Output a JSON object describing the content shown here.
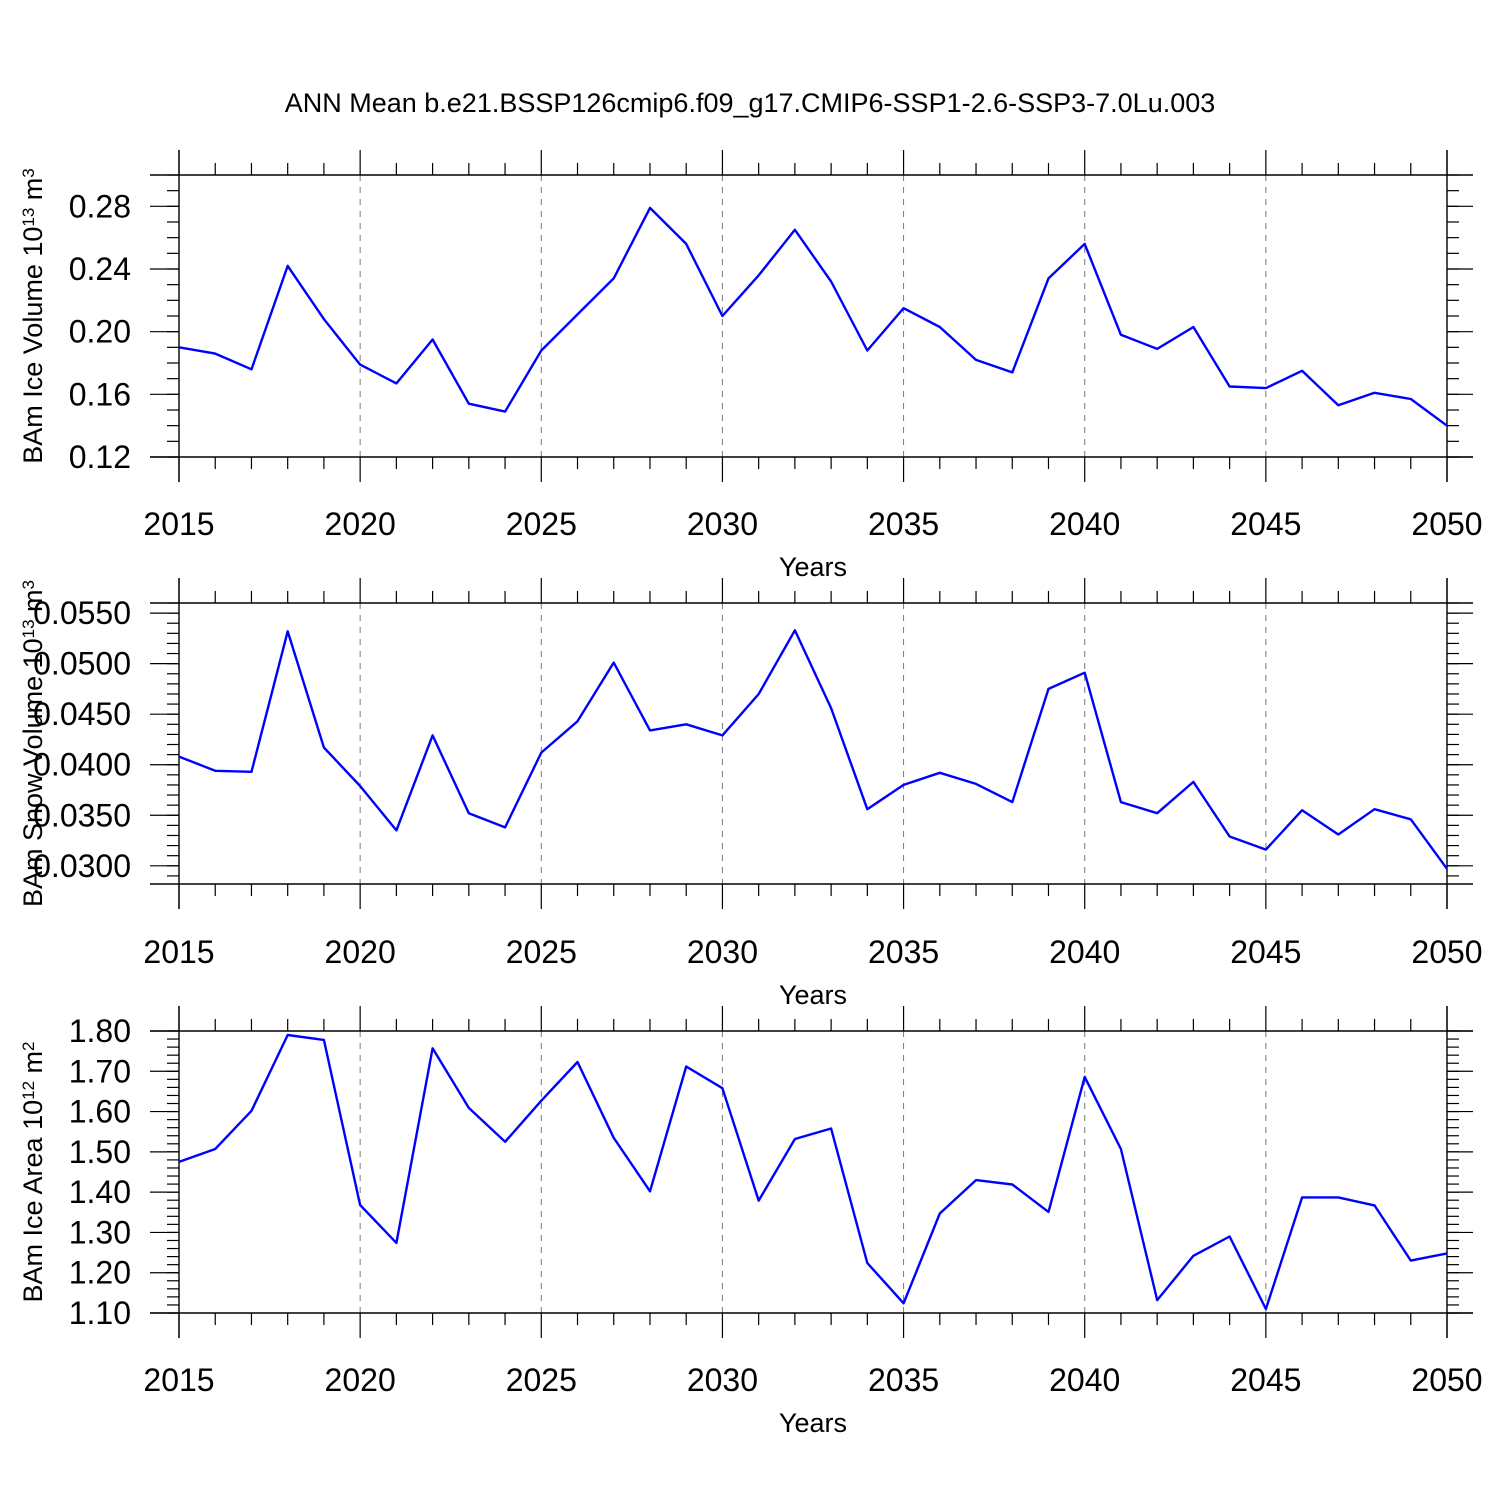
{
  "title": "ANN Mean b.e21.BSSP126cmip6.f09_g17.CMIP6-SSP1-2.6-SSP3-7.0Lu.003",
  "colors": {
    "line": "#0000ff",
    "frame": "#000000",
    "grid": "#777777"
  },
  "chart_data": [
    {
      "type": "line",
      "ylabel": {
        "text": "BAm Ice Volume 10",
        "sup1": "13",
        "unit": " m",
        "sup2": "3"
      },
      "xlabel": "Years",
      "xlim": [
        2015,
        2050
      ],
      "ylim": [
        0.12,
        0.3
      ],
      "yticks": [
        0.12,
        0.16,
        0.2,
        0.24,
        0.28
      ],
      "ytick_labels": [
        "0.12",
        "0.16",
        "0.20",
        "0.24",
        "0.28"
      ],
      "yminor_step": 0.01,
      "xticks": [
        2015,
        2020,
        2025,
        2030,
        2035,
        2040,
        2045,
        2050
      ],
      "xtick_labels": [
        "2015",
        "2020",
        "2025",
        "2030",
        "2035",
        "2040",
        "2045",
        "2050"
      ],
      "grid_x": [
        2020,
        2025,
        2030,
        2035,
        2040,
        2045
      ],
      "x": [
        2015,
        2016,
        2017,
        2018,
        2019,
        2020,
        2021,
        2022,
        2023,
        2024,
        2025,
        2026,
        2027,
        2028,
        2029,
        2030,
        2031,
        2032,
        2033,
        2034,
        2035,
        2036,
        2037,
        2038,
        2039,
        2040,
        2041,
        2042,
        2043,
        2044,
        2045,
        2046,
        2047,
        2048,
        2049,
        2050
      ],
      "y": [
        0.19,
        0.186,
        0.176,
        0.242,
        0.208,
        0.179,
        0.167,
        0.195,
        0.154,
        0.149,
        0.188,
        0.211,
        0.234,
        0.279,
        0.256,
        0.21,
        0.236,
        0.265,
        0.232,
        0.188,
        0.215,
        0.203,
        0.182,
        0.174,
        0.234,
        0.256,
        0.198,
        0.189,
        0.203,
        0.165,
        0.164,
        0.175,
        0.153,
        0.161,
        0.157,
        0.14
      ]
    },
    {
      "type": "line",
      "ylabel": {
        "text": "BAm Snow Volume 10",
        "sup1": "13",
        "unit": " m",
        "sup2": "3"
      },
      "xlabel": "Years",
      "xlim": [
        2015,
        2050
      ],
      "ylim": [
        0.0282,
        0.056
      ],
      "yticks": [
        0.03,
        0.035,
        0.04,
        0.045,
        0.05,
        0.055
      ],
      "ytick_labels": [
        "0.0300",
        "0.0350",
        "0.0400",
        "0.0450",
        "0.0500",
        "0.0550"
      ],
      "yminor_step": 0.001,
      "xticks": [
        2015,
        2020,
        2025,
        2030,
        2035,
        2040,
        2045,
        2050
      ],
      "xtick_labels": [
        "2015",
        "2020",
        "2025",
        "2030",
        "2035",
        "2040",
        "2045",
        "2050"
      ],
      "grid_x": [
        2020,
        2025,
        2030,
        2035,
        2040,
        2045
      ],
      "x": [
        2015,
        2016,
        2017,
        2018,
        2019,
        2020,
        2021,
        2022,
        2023,
        2024,
        2025,
        2026,
        2027,
        2028,
        2029,
        2030,
        2031,
        2032,
        2033,
        2034,
        2035,
        2036,
        2037,
        2038,
        2039,
        2040,
        2041,
        2042,
        2043,
        2044,
        2045,
        2046,
        2047,
        2048,
        2049,
        2050
      ],
      "y": [
        0.0408,
        0.0394,
        0.0393,
        0.0532,
        0.0417,
        0.0379,
        0.0335,
        0.0429,
        0.0352,
        0.0338,
        0.0412,
        0.0443,
        0.0501,
        0.0434,
        0.044,
        0.0429,
        0.047,
        0.0533,
        0.0456,
        0.0356,
        0.038,
        0.0392,
        0.0381,
        0.0363,
        0.0475,
        0.0491,
        0.0363,
        0.0352,
        0.0383,
        0.0329,
        0.0316,
        0.0355,
        0.0331,
        0.0356,
        0.0346,
        0.0297
      ]
    },
    {
      "type": "line",
      "ylabel": {
        "text": "BAm Ice Area 10",
        "sup1": "12",
        "unit": " m",
        "sup2": "2"
      },
      "xlabel": "Years",
      "xlim": [
        2015,
        2050
      ],
      "ylim": [
        1.1,
        1.8
      ],
      "yticks": [
        1.1,
        1.2,
        1.3,
        1.4,
        1.5,
        1.6,
        1.7,
        1.8
      ],
      "ytick_labels": [
        "1.10",
        "1.20",
        "1.30",
        "1.40",
        "1.50",
        "1.60",
        "1.70",
        "1.80"
      ],
      "yminor_step": 0.02,
      "xticks": [
        2015,
        2020,
        2025,
        2030,
        2035,
        2040,
        2045,
        2050
      ],
      "xtick_labels": [
        "2015",
        "2020",
        "2025",
        "2030",
        "2035",
        "2040",
        "2045",
        "2050"
      ],
      "grid_x": [
        2020,
        2025,
        2030,
        2035,
        2040,
        2045
      ],
      "x": [
        2015,
        2016,
        2017,
        2018,
        2019,
        2020,
        2021,
        2022,
        2023,
        2024,
        2025,
        2026,
        2027,
        2028,
        2029,
        2030,
        2031,
        2032,
        2033,
        2034,
        2035,
        2036,
        2037,
        2038,
        2039,
        2040,
        2041,
        2042,
        2043,
        2044,
        2045,
        2046,
        2047,
        2048,
        2049,
        2050
      ],
      "y": [
        1.475,
        1.507,
        1.602,
        1.79,
        1.778,
        1.368,
        1.274,
        1.757,
        1.609,
        1.525,
        1.627,
        1.723,
        1.535,
        1.402,
        1.712,
        1.658,
        1.379,
        1.532,
        1.558,
        1.224,
        1.124,
        1.347,
        1.43,
        1.419,
        1.351,
        1.686,
        1.507,
        1.132,
        1.242,
        1.29,
        1.11,
        1.387,
        1.387,
        1.367,
        1.23,
        1.248
      ]
    }
  ]
}
